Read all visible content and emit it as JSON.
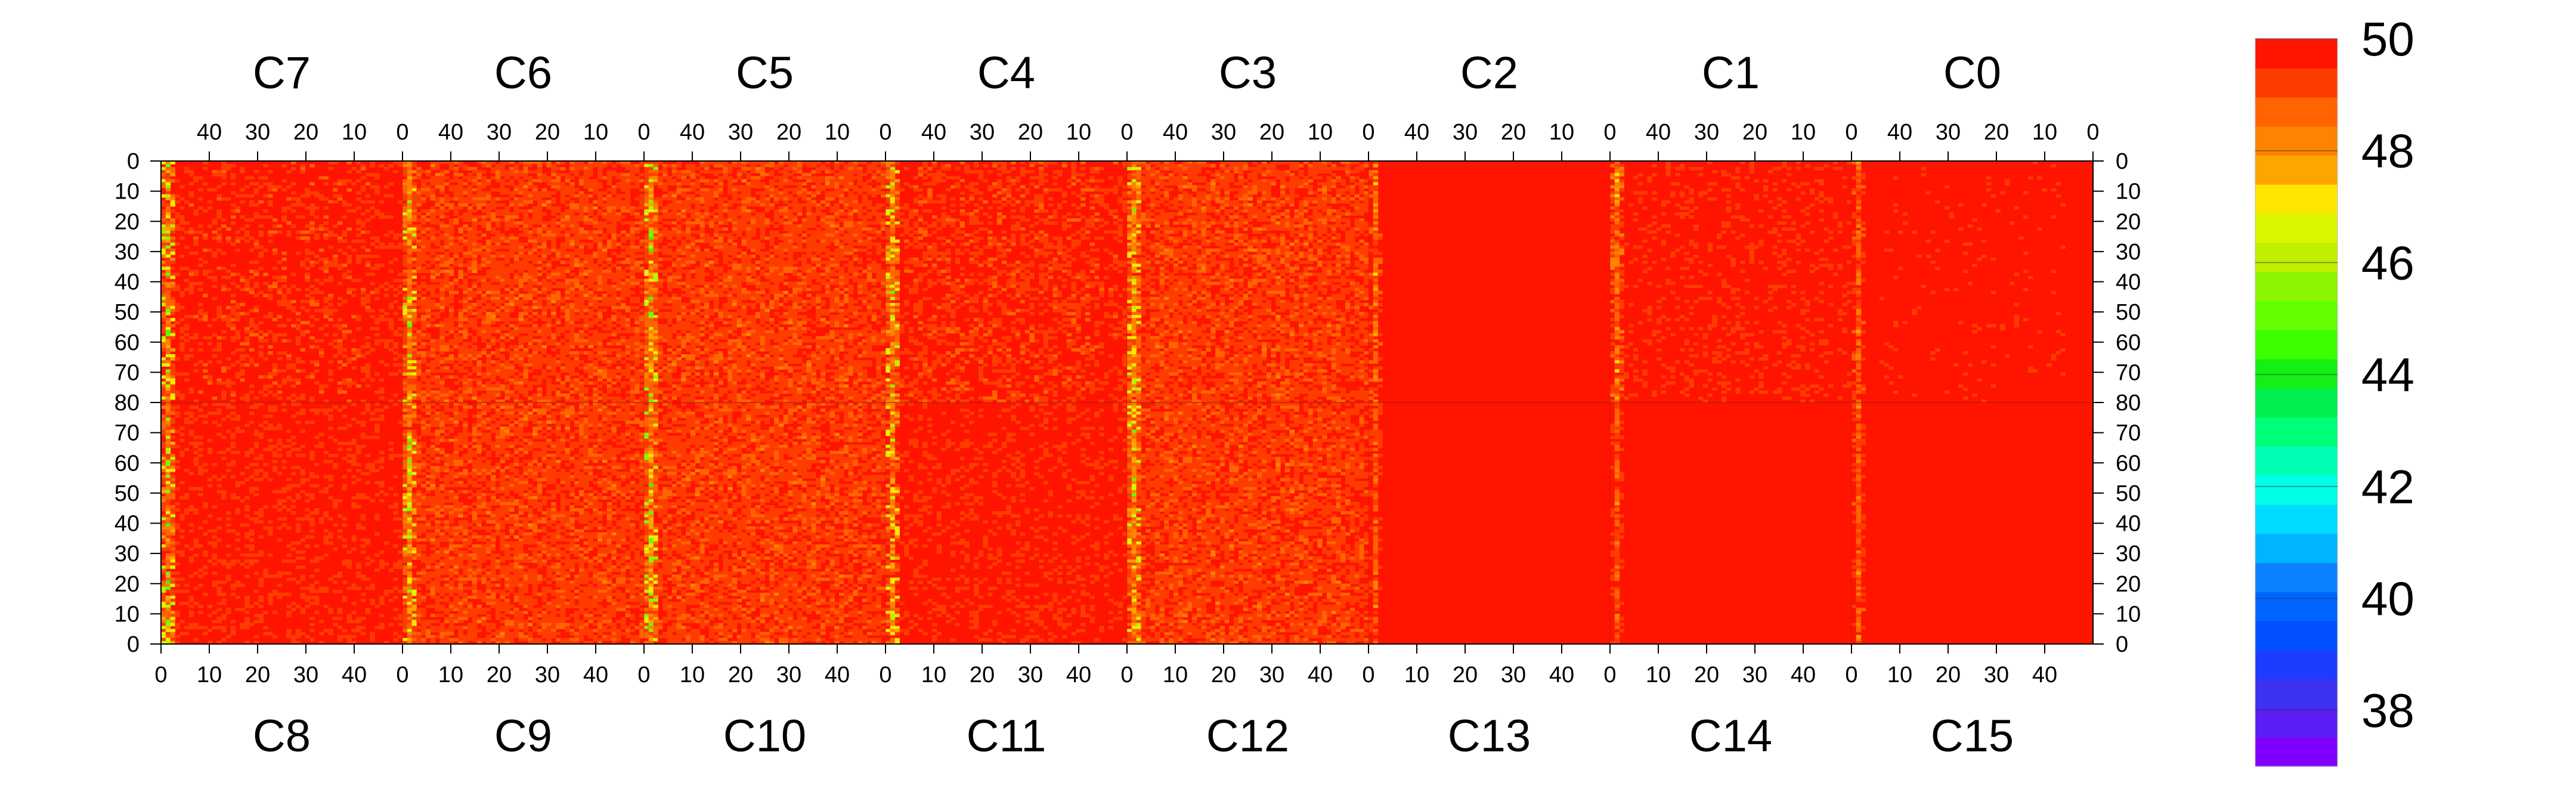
{
  "chart_data": {
    "type": "heatmap",
    "top_chip_labels": [
      "C7",
      "C6",
      "C5",
      "C4",
      "C3",
      "C2",
      "C1",
      "C0"
    ],
    "bottom_chip_labels": [
      "C8",
      "C9",
      "C10",
      "C11",
      "C12",
      "C13",
      "C14",
      "C15"
    ],
    "chip_column_ticks_top": [
      "40",
      "30",
      "20",
      "10",
      "0"
    ],
    "chip_column_ticks_bottom": [
      "0",
      "10",
      "20",
      "30",
      "40"
    ],
    "y_ticks_upper": [
      "0",
      "10",
      "20",
      "30",
      "40",
      "50",
      "60",
      "70",
      "80"
    ],
    "y_ticks_lower": [
      "70",
      "60",
      "50",
      "40",
      "30",
      "20",
      "10",
      "0"
    ],
    "columns_per_chip": 52,
    "rows_per_half": 80,
    "z_range": [
      37,
      50
    ],
    "colorbar": {
      "ticks": [
        "50",
        "48",
        "46",
        "44",
        "42",
        "40",
        "38"
      ],
      "colors": [
        "#8000ff",
        "#5a1ef5",
        "#3c32f0",
        "#1e3cff",
        "#0050ff",
        "#0064ff",
        "#0a82ff",
        "#00b4ff",
        "#00dcff",
        "#00ffe6",
        "#00ffb4",
        "#00ff78",
        "#00f050",
        "#14f014",
        "#3cff00",
        "#64ff00",
        "#8cf500",
        "#bef000",
        "#dcf500",
        "#ffe600",
        "#ffa500",
        "#ff8200",
        "#ff6400",
        "#ff3c00",
        "#ff1400"
      ]
    },
    "series": [
      {
        "chip": "C7",
        "half": "upper",
        "base": 49.8,
        "edge_spread": 3.5,
        "body_spread": 0.8
      },
      {
        "chip": "C6",
        "half": "upper",
        "base": 49.6,
        "edge_spread": 3.0,
        "body_spread": 1.0
      },
      {
        "chip": "C5",
        "half": "upper",
        "base": 49.6,
        "edge_spread": 3.6,
        "body_spread": 1.0
      },
      {
        "chip": "C4",
        "half": "upper",
        "base": 49.7,
        "edge_spread": 3.0,
        "body_spread": 0.8
      },
      {
        "chip": "C3",
        "half": "upper",
        "base": 49.6,
        "edge_spread": 3.0,
        "body_spread": 1.0
      },
      {
        "chip": "C2",
        "half": "upper",
        "base": 49.9,
        "edge_spread": 1.2,
        "body_spread": 0.3
      },
      {
        "chip": "C1",
        "half": "upper",
        "base": 49.8,
        "edge_spread": 1.5,
        "body_spread": 0.5
      },
      {
        "chip": "C0",
        "half": "upper",
        "base": 49.9,
        "edge_spread": 1.0,
        "body_spread": 0.4
      },
      {
        "chip": "C8",
        "half": "lower",
        "base": 49.8,
        "edge_spread": 3.5,
        "body_spread": 0.7
      },
      {
        "chip": "C9",
        "half": "lower",
        "base": 49.6,
        "edge_spread": 3.0,
        "body_spread": 1.0
      },
      {
        "chip": "C10",
        "half": "lower",
        "base": 49.6,
        "edge_spread": 3.6,
        "body_spread": 1.0
      },
      {
        "chip": "C11",
        "half": "lower",
        "base": 49.8,
        "edge_spread": 2.6,
        "body_spread": 0.6
      },
      {
        "chip": "C12",
        "half": "lower",
        "base": 49.6,
        "edge_spread": 3.0,
        "body_spread": 1.0
      },
      {
        "chip": "C13",
        "half": "lower",
        "base": 49.95,
        "edge_spread": 0.8,
        "body_spread": 0.2
      },
      {
        "chip": "C14",
        "half": "lower",
        "base": 49.95,
        "edge_spread": 0.8,
        "body_spread": 0.2
      },
      {
        "chip": "C15",
        "half": "lower",
        "base": 49.9,
        "edge_spread": 0.9,
        "body_spread": 0.3
      }
    ]
  }
}
